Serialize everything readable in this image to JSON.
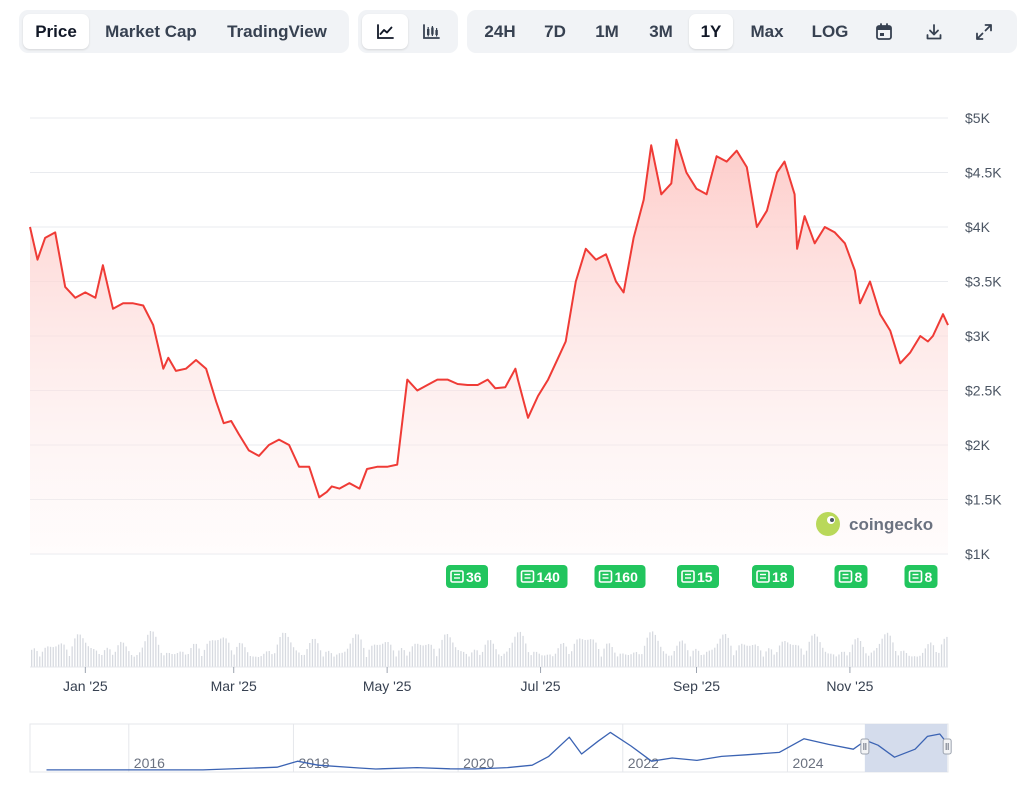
{
  "tabs": {
    "price": "Price",
    "market_cap": "Market Cap",
    "tradingview": "TradingView"
  },
  "ranges": [
    "24H",
    "7D",
    "1M",
    "3M",
    "1Y",
    "Max",
    "LOG"
  ],
  "active_range": "1Y",
  "icons": {
    "line_chart": "line-chart-icon",
    "candlestick": "candlestick-icon",
    "calendar": "calendar-icon",
    "download": "download-icon",
    "expand": "expand-icon"
  },
  "watermark": "coingecko",
  "news_badges": [
    "36",
    "140",
    "160",
    "15",
    "18",
    "8",
    "8"
  ],
  "colors": {
    "line": "#ef3b36",
    "fill": "#fdd4d2",
    "badge": "#22c55e",
    "navigator_line": "#3b63b3",
    "navigator_selection": "#cfd8ea"
  },
  "chart_data": {
    "type": "area",
    "ylim": [
      1000,
      5000
    ],
    "y_ticks": [
      "$5K",
      "$4.5K",
      "$4K",
      "$3.5K",
      "$3K",
      "$2.5K",
      "$2K",
      "$1.5K",
      "$1K"
    ],
    "x_ticks": [
      "Jan '25",
      "Mar '25",
      "May '25",
      "Jul '25",
      "Sep '25",
      "Nov '25"
    ],
    "series": [
      {
        "x": [
          "2024-12-10",
          "2024-12-13",
          "2024-12-16",
          "2024-12-20",
          "2024-12-24",
          "2024-12-28",
          "2025-01-01",
          "2025-01-05",
          "2025-01-08",
          "2025-01-12",
          "2025-01-16",
          "2025-01-20",
          "2025-01-24",
          "2025-01-28",
          "2025-02-01",
          "2025-02-03",
          "2025-02-06",
          "2025-02-10",
          "2025-02-14",
          "2025-02-18",
          "2025-02-22",
          "2025-02-25",
          "2025-02-28",
          "2025-03-03",
          "2025-03-07",
          "2025-03-11",
          "2025-03-15",
          "2025-03-19",
          "2025-03-23",
          "2025-03-27",
          "2025-03-31",
          "2025-04-04",
          "2025-04-07",
          "2025-04-09",
          "2025-04-12",
          "2025-04-16",
          "2025-04-20",
          "2025-04-23",
          "2025-04-27",
          "2025-05-01",
          "2025-05-05",
          "2025-05-09",
          "2025-05-13",
          "2025-05-17",
          "2025-05-21",
          "2025-05-25",
          "2025-05-29",
          "2025-06-02",
          "2025-06-06",
          "2025-06-10",
          "2025-06-13",
          "2025-06-17",
          "2025-06-21",
          "2025-06-22",
          "2025-06-26",
          "2025-06-30",
          "2025-07-04",
          "2025-07-08",
          "2025-07-11",
          "2025-07-15",
          "2025-07-19",
          "2025-07-23",
          "2025-07-27",
          "2025-07-31",
          "2025-08-03",
          "2025-08-07",
          "2025-08-11",
          "2025-08-14",
          "2025-08-18",
          "2025-08-22",
          "2025-08-24",
          "2025-08-28",
          "2025-09-01",
          "2025-09-05",
          "2025-09-09",
          "2025-09-13",
          "2025-09-17",
          "2025-09-21",
          "2025-09-25",
          "2025-09-29",
          "2025-10-03",
          "2025-10-06",
          "2025-10-10",
          "2025-10-11",
          "2025-10-14",
          "2025-10-18",
          "2025-10-22",
          "2025-10-26",
          "2025-10-30",
          "2025-11-03",
          "2025-11-05",
          "2025-11-09",
          "2025-11-13",
          "2025-11-17",
          "2025-11-21",
          "2025-11-25",
          "2025-11-29",
          "2025-12-02",
          "2025-12-04",
          "2025-12-08",
          "2025-12-10"
        ],
        "y": [
          4000,
          3700,
          3900,
          3950,
          3450,
          3350,
          3400,
          3350,
          3650,
          3250,
          3300,
          3300,
          3280,
          3100,
          2700,
          2800,
          2680,
          2700,
          2780,
          2700,
          2400,
          2200,
          2220,
          2100,
          1950,
          1900,
          2000,
          2050,
          2000,
          1800,
          1800,
          1520,
          1570,
          1620,
          1600,
          1650,
          1600,
          1780,
          1800,
          1800,
          1820,
          2600,
          2500,
          2550,
          2600,
          2600,
          2560,
          2550,
          2550,
          2600,
          2520,
          2530,
          2700,
          2600,
          2250,
          2450,
          2600,
          2800,
          2950,
          3500,
          3800,
          3700,
          3750,
          3500,
          3400,
          3900,
          4250,
          4750,
          4300,
          4400,
          4800,
          4500,
          4350,
          4300,
          4650,
          4600,
          4700,
          4550,
          4000,
          4150,
          4500,
          4600,
          4300,
          3800,
          4100,
          3850,
          4000,
          3950,
          3850,
          3600,
          3300,
          3500,
          3200,
          3050,
          2750,
          2850,
          3000,
          2950,
          3000,
          3200,
          3100
        ]
      }
    ],
    "navigator": {
      "x_ticks": [
        "2016",
        "2018",
        "2020",
        "2022",
        "2024"
      ],
      "points": [
        [
          2015.0,
          10
        ],
        [
          2016.0,
          10
        ],
        [
          2016.9,
          12
        ],
        [
          2017.4,
          200
        ],
        [
          2017.8,
          350
        ],
        [
          2018.05,
          1100
        ],
        [
          2018.3,
          600
        ],
        [
          2018.8,
          250
        ],
        [
          2019.0,
          130
        ],
        [
          2019.5,
          300
        ],
        [
          2019.9,
          150
        ],
        [
          2020.2,
          120
        ],
        [
          2020.6,
          300
        ],
        [
          2020.9,
          600
        ],
        [
          2021.1,
          1700
        ],
        [
          2021.35,
          4100
        ],
        [
          2021.5,
          2000
        ],
        [
          2021.7,
          3600
        ],
        [
          2021.85,
          4700
        ],
        [
          2022.1,
          3000
        ],
        [
          2022.35,
          1100
        ],
        [
          2022.6,
          1500
        ],
        [
          2022.9,
          1200
        ],
        [
          2023.2,
          1700
        ],
        [
          2023.5,
          1900
        ],
        [
          2023.9,
          2200
        ],
        [
          2024.2,
          3900
        ],
        [
          2024.5,
          3200
        ],
        [
          2024.8,
          2600
        ],
        [
          2024.95,
          3700
        ],
        [
          2025.1,
          3100
        ],
        [
          2025.3,
          1600
        ],
        [
          2025.55,
          2600
        ],
        [
          2025.7,
          4200
        ],
        [
          2025.85,
          4500
        ],
        [
          2025.95,
          3200
        ]
      ],
      "ylim": [
        0,
        5000
      ],
      "selection": [
        "2024-12-10",
        "2025-12-10"
      ]
    }
  }
}
